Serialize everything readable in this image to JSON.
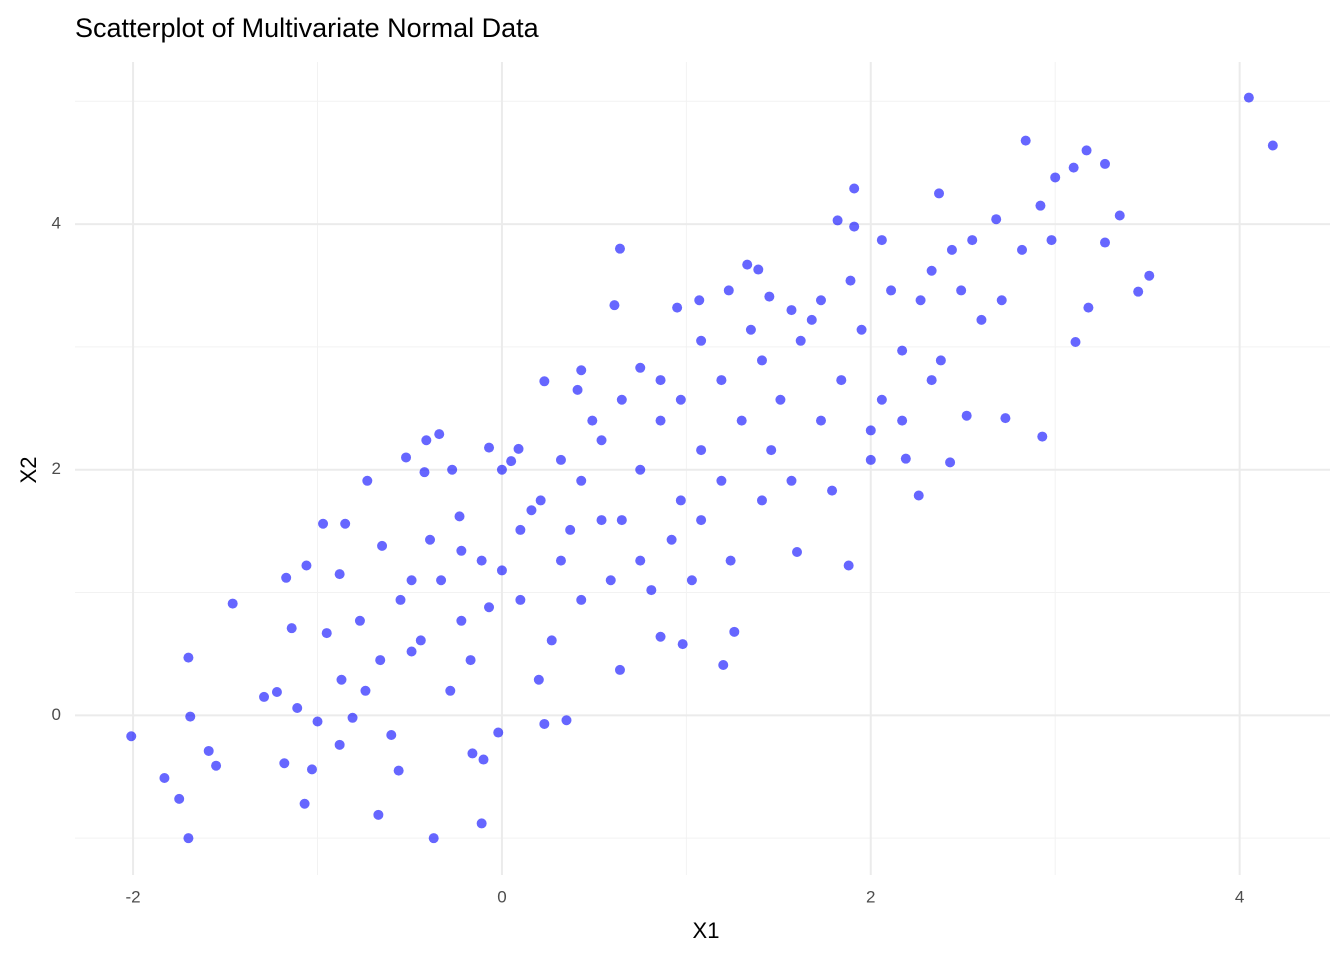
{
  "chart_data": {
    "type": "scatter",
    "title": "Scatterplot of Multivariate Normal Data",
    "x_label": "X1",
    "y_label": "X2",
    "color": "#0000ff",
    "opacity": 0.6,
    "xlim": [
      -2.315,
      4.49
    ],
    "ylim": [
      -1.3,
      5.32
    ],
    "xticks": [
      -2,
      0,
      2,
      4
    ],
    "yticks": [
      0,
      2,
      4
    ],
    "x_minor_grid": [
      -1,
      1,
      3
    ],
    "y_minor_grid": [
      -1,
      1,
      3,
      5
    ],
    "grid": true,
    "x": [
      -2.01,
      -1.83,
      -1.75,
      -1.7,
      -1.7,
      -1.69,
      -1.59,
      -1.55,
      -1.46,
      -1.29,
      -1.22,
      -1.18,
      -1.17,
      -1.14,
      -1.11,
      -1.07,
      -1.06,
      -1.03,
      -1.0,
      -0.97,
      -0.95,
      -0.88,
      -0.85,
      -0.88,
      -0.81,
      -0.73,
      -0.67,
      -0.74,
      -0.65,
      -0.6,
      -0.56,
      -0.52,
      -0.49,
      -0.42,
      -0.41,
      -0.37,
      -0.34,
      -0.27,
      -0.23,
      -0.16,
      -0.11,
      -0.1,
      -0.07,
      -0.02,
      -0.07,
      0.05,
      0.09,
      0.23,
      0.23,
      0.35,
      0.2,
      0.41,
      0.43,
      0.61,
      0.64,
      0.64,
      0.75,
      0.86,
      0.98,
      0.95,
      1.07,
      1.23,
      1.2,
      1.26,
      1.33,
      1.39,
      1.45,
      1.6,
      1.88,
      1.91,
      1.82,
      1.91,
      2.06,
      2.19,
      2.26,
      2.37,
      2.43,
      2.52,
      2.68,
      2.73,
      2.84,
      2.93,
      2.92,
      3.0,
      3.1,
      3.11,
      3.17,
      3.18,
      3.27,
      3.27,
      3.35,
      3.45,
      3.51,
      4.05,
      4.18,
      0,
      0.1,
      0.21,
      0.32,
      0.43,
      0.54,
      0.65,
      0.75,
      0.86,
      0.97,
      1.08,
      1.19,
      1.3,
      1.41,
      1.51,
      1.62,
      1.73,
      1.84,
      1.95,
      2.06,
      2.17,
      2.27,
      2.38,
      2.49,
      2.6,
      2.71,
      2.82,
      2.98,
      -0.33,
      -0.22,
      -0.44,
      -0.55,
      -0.66,
      -0.77,
      -0.87,
      -0.28,
      -0.17,
      -0.11,
      0.1,
      0.27,
      0.43,
      0.59,
      0.75,
      0.92,
      1.08,
      1.24,
      1.41,
      1.57,
      1.79,
      2.0,
      0.65,
      0.49,
      0.32,
      1.08,
      0.86,
      1.35,
      1.68,
      1.46,
      1.19,
      0.97,
      0.81,
      1.03,
      0.54,
      0.37,
      0.16,
      0,
      -0.22,
      -0.39,
      -0.49,
      2.11,
      2.33,
      2.44,
      2.55,
      1.89,
      1.73,
      1.57,
      2.0,
      2.17,
      2.33
    ],
    "values": [
      -0.17,
      -0.51,
      -0.68,
      -1.0,
      0.47,
      -0.01,
      -0.29,
      -0.41,
      0.91,
      0.15,
      0.19,
      -0.39,
      1.12,
      0.71,
      0.06,
      -0.72,
      1.22,
      -0.44,
      -0.05,
      1.56,
      0.67,
      -0.24,
      1.56,
      1.15,
      -0.02,
      1.91,
      -0.81,
      0.2,
      1.38,
      -0.16,
      -0.45,
      2.1,
      0.52,
      1.98,
      2.24,
      -1.0,
      2.29,
      2.0,
      1.62,
      -0.31,
      -0.88,
      -0.36,
      2.18,
      -0.14,
      0.88,
      2.07,
      2.17,
      2.72,
      -0.07,
      -0.04,
      0.29,
      2.65,
      2.81,
      3.34,
      3.8,
      0.37,
      2.83,
      0.64,
      0.58,
      3.32,
      3.38,
      3.46,
      0.41,
      0.68,
      3.67,
      3.63,
      3.41,
      1.33,
      1.22,
      4.29,
      4.03,
      3.98,
      3.87,
      2.09,
      1.79,
      4.25,
      2.06,
      2.44,
      4.04,
      2.42,
      4.68,
      2.27,
      4.15,
      4.38,
      4.46,
      3.04,
      4.6,
      3.32,
      4.49,
      3.85,
      4.07,
      3.45,
      3.58,
      5.03,
      4.64,
      1.18,
      1.51,
      1.75,
      1.26,
      1.91,
      2.24,
      1.59,
      2.0,
      2.4,
      2.57,
      2.16,
      2.73,
      2.4,
      2.89,
      2.57,
      3.05,
      2.4,
      2.73,
      3.14,
      2.57,
      2.97,
      3.38,
      2.89,
      3.46,
      3.22,
      3.38,
      3.79,
      3.87,
      1.1,
      0.77,
      0.61,
      0.94,
      0.45,
      0.77,
      0.29,
      0.2,
      0.45,
      1.26,
      0.94,
      0.61,
      0.94,
      1.1,
      1.26,
      1.43,
      1.59,
      1.26,
      1.75,
      1.91,
      1.83,
      2.08,
      2.57,
      2.4,
      2.08,
      3.05,
      2.73,
      3.14,
      3.22,
      2.16,
      1.91,
      1.75,
      1.02,
      1.1,
      1.59,
      1.51,
      1.67,
      2.0,
      1.34,
      1.43,
      1.1,
      3.46,
      3.62,
      3.79,
      3.87,
      3.54,
      3.38,
      3.3,
      2.32,
      2.4,
      2.73
    ]
  }
}
